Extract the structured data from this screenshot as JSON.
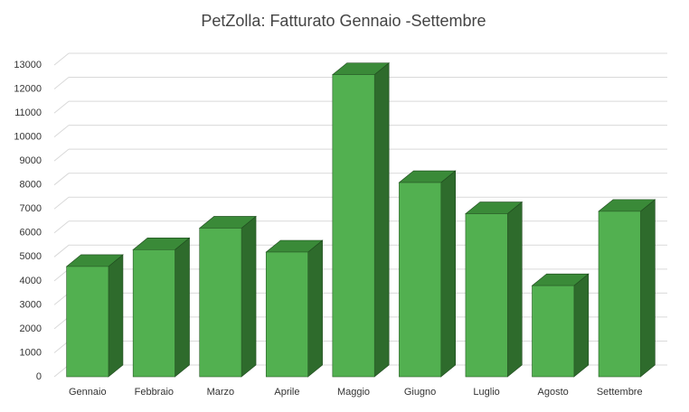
{
  "chart_data": {
    "type": "bar3d",
    "title": "PetZolla: Fatturato Gennaio -Settembre",
    "categories": [
      "Gennaio",
      "Febbraio",
      "Marzo",
      "Aprile",
      "Maggio",
      "Giugno",
      "Luglio",
      "Agosto",
      "Settembre"
    ],
    "values": [
      4600,
      5300,
      6200,
      5200,
      12600,
      8100,
      6800,
      3800,
      6900
    ],
    "color": "#52b050",
    "ylim": [
      0,
      13000
    ],
    "yticks": [
      0,
      1000,
      2000,
      3000,
      4000,
      5000,
      6000,
      7000,
      8000,
      9000,
      10000,
      11000,
      12000,
      13000
    ],
    "grid": true
  }
}
